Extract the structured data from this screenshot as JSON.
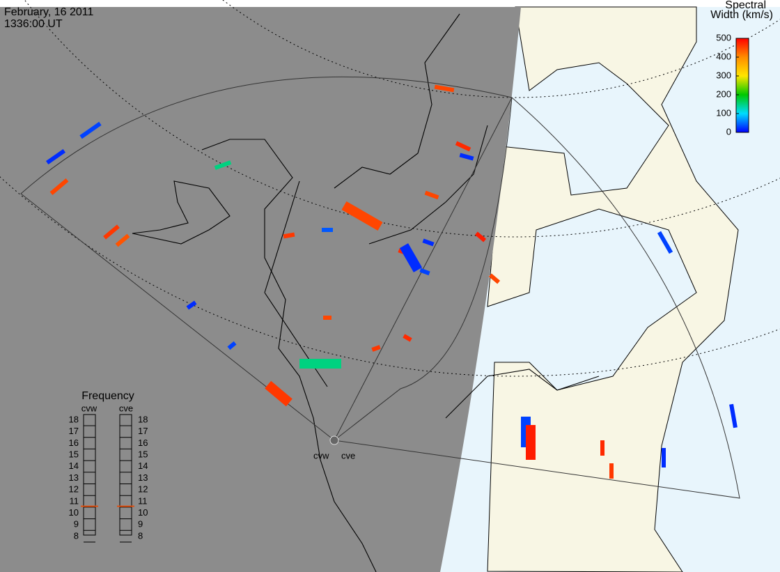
{
  "header": {
    "date": "February, 16 2011",
    "time": "1336:00 UT"
  },
  "colorbar": {
    "title_line1": "Spectral",
    "title_line2": "Width (km/s)",
    "ticks": [
      500,
      400,
      300,
      200,
      100,
      0
    ],
    "range": [
      0,
      500
    ]
  },
  "frequency": {
    "title": "Frequency",
    "radars": [
      {
        "name": "cvw",
        "value": 10.6
      },
      {
        "name": "cve",
        "value": 10.6
      }
    ],
    "ticks": [
      18,
      17,
      16,
      15,
      14,
      13,
      12,
      11,
      10,
      9,
      8
    ],
    "range": [
      8,
      18
    ]
  },
  "sites": [
    "cvw",
    "cve"
  ],
  "echoes": [
    450,
    30,
    20,
    450,
    460,
    440,
    20,
    150,
    30,
    20,
    470,
    450,
    40,
    460,
    480,
    450,
    30,
    450,
    470,
    460,
    30,
    20,
    20,
    470,
    450,
    20,
    150,
    460,
    470,
    30,
    480,
    460,
    20
  ]
}
